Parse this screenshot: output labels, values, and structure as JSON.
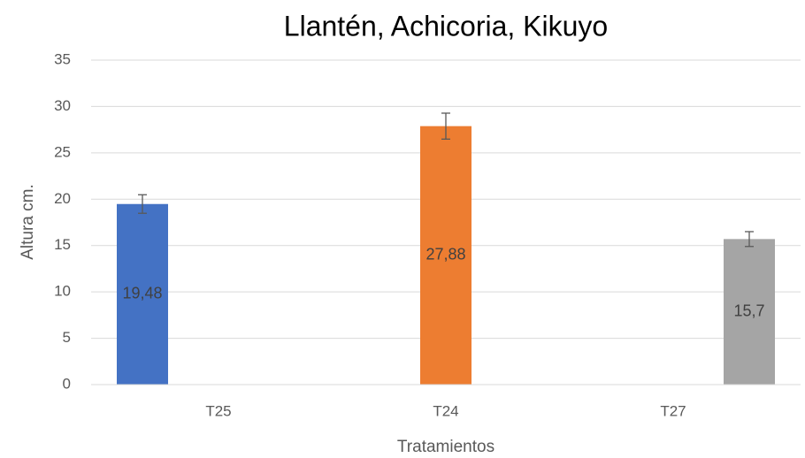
{
  "chart_data": {
    "type": "bar",
    "title": "Llantén, Achicoria, Kikuyo",
    "x_label": "Tratamientos",
    "y_label": "Altura cm.",
    "categories": [
      "T25",
      "T24",
      "T27"
    ],
    "series": [
      {
        "color": "#4472c4",
        "values": [
          19.48,
          null,
          null
        ],
        "errors": [
          1.0,
          null,
          null
        ],
        "value_labels": [
          "19,48",
          null,
          null
        ]
      },
      {
        "color": "#ed7d31",
        "values": [
          null,
          27.88,
          null
        ],
        "errors": [
          null,
          1.4,
          null
        ],
        "value_labels": [
          null,
          "27,88",
          null
        ]
      },
      {
        "color": "#a5a5a5",
        "values": [
          null,
          null,
          15.7
        ],
        "errors": [
          null,
          null,
          0.8
        ],
        "value_labels": [
          null,
          null,
          "15,7"
        ]
      }
    ],
    "ylim": [
      0,
      35
    ],
    "yticks": [
      0,
      5,
      10,
      15,
      20,
      25,
      30,
      35
    ],
    "grid": true
  }
}
